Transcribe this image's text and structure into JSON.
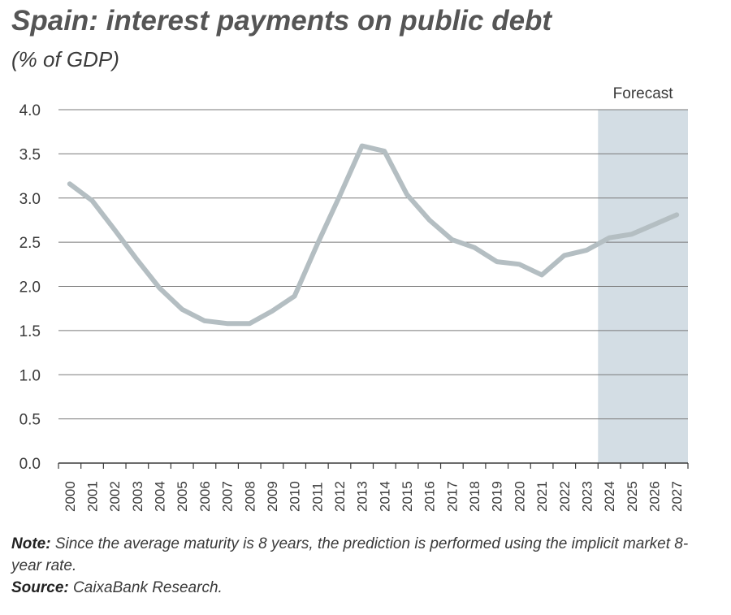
{
  "chart_data": {
    "type": "line",
    "title": "Spain: interest payments on public debt",
    "subtitle": "(% of GDP)",
    "x": [
      "2000",
      "2001",
      "2002",
      "2003",
      "2004",
      "2005",
      "2006",
      "2007",
      "2008",
      "2009",
      "2010",
      "2011",
      "2012",
      "2013",
      "2014",
      "2015",
      "2016",
      "2017",
      "2018",
      "2019",
      "2020",
      "2021",
      "2022",
      "2023",
      "2024",
      "2025",
      "2026",
      "2027"
    ],
    "series": [
      {
        "values": [
          3.16,
          2.97,
          2.64,
          2.3,
          1.98,
          1.74,
          1.61,
          1.58,
          1.58,
          1.72,
          1.89,
          2.47,
          3.02,
          3.59,
          3.53,
          3.04,
          2.75,
          2.53,
          2.44,
          2.28,
          2.25,
          2.13,
          2.35,
          2.41,
          2.55,
          2.59,
          2.7,
          2.81
        ]
      }
    ],
    "yticks": [
      "0.0",
      "0.5",
      "1.0",
      "1.5",
      "2.0",
      "2.5",
      "3.0",
      "3.5",
      "4.0"
    ],
    "ylim": [
      0,
      4
    ],
    "xlabel": "",
    "ylabel": "",
    "forecast": {
      "label": "Forecast",
      "start": "2024",
      "end": "2027"
    },
    "grid": "horizontal",
    "colors": {
      "line": "#b4bec2",
      "forecast_band": "#d3dde4",
      "grid": "#7a7a7a"
    }
  },
  "notes": {
    "note_label": "Note:",
    "note_text": "Since the average maturity is 8 years, the prediction is performed using the implicit market 8-year rate.",
    "source_label": "Source:",
    "source_text": "CaixaBank Research."
  }
}
